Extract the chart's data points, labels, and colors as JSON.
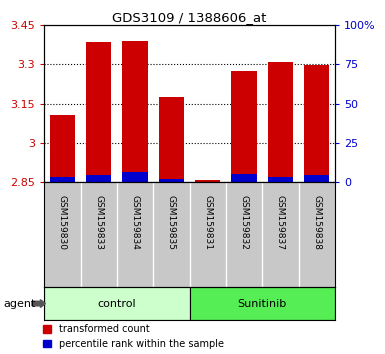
{
  "title": "GDS3109 / 1388606_at",
  "samples": [
    "GSM159830",
    "GSM159833",
    "GSM159834",
    "GSM159835",
    "GSM159831",
    "GSM159832",
    "GSM159837",
    "GSM159838"
  ],
  "red_values": [
    3.105,
    3.385,
    3.39,
    3.175,
    2.858,
    3.275,
    3.31,
    3.295
  ],
  "blue_values": [
    2.872,
    2.878,
    2.888,
    2.862,
    2.852,
    2.882,
    2.872,
    2.878
  ],
  "ymin": 2.85,
  "ymax": 3.45,
  "yticks": [
    2.85,
    3.0,
    3.15,
    3.3,
    3.45
  ],
  "ytick_labels": [
    "2.85",
    "3",
    "3.15",
    "3.3",
    "3.45"
  ],
  "y2_pcts": [
    0,
    25,
    50,
    75,
    100
  ],
  "y2tick_labels": [
    "0",
    "25",
    "50",
    "75",
    "100%"
  ],
  "groups": [
    {
      "label": "control",
      "indices": [
        0,
        1,
        2,
        3
      ],
      "color": "#ccffcc"
    },
    {
      "label": "Sunitinib",
      "indices": [
        4,
        5,
        6,
        7
      ],
      "color": "#55ee55"
    }
  ],
  "bar_width": 0.7,
  "red_color": "#cc0000",
  "blue_color": "#0000cc",
  "plot_bg_color": "#ffffff",
  "sample_bg_color": "#c8c8c8",
  "agent_label": "agent",
  "legend_red": "transformed count",
  "legend_blue": "percentile rank within the sample",
  "left_label_color": "#cc0000",
  "right_label_color": "#0000cc"
}
